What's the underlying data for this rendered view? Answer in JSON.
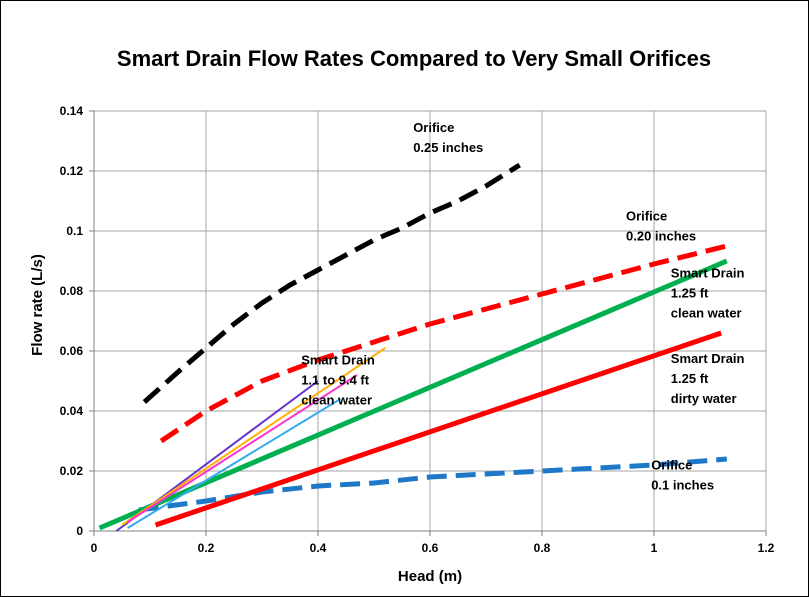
{
  "chart_data": {
    "type": "line",
    "title": "Smart Drain Flow Rates Compared to Very Small Orifices",
    "xlabel": "Head (m)",
    "ylabel": "Flow rate (L/s)",
    "xlim": [
      0,
      1.2
    ],
    "ylim": [
      0,
      0.14
    ],
    "grid": true,
    "x_ticks": [
      "0",
      "0.2",
      "0.4",
      "0.6",
      "0.8",
      "1",
      "1.2"
    ],
    "y_ticks": [
      "0",
      "0.02",
      "0.04",
      "0.06",
      "0.08",
      "0.1",
      "0.12",
      "0.14"
    ],
    "series": [
      {
        "color": "#000000",
        "dashed": true,
        "width": 5,
        "x": [
          0.09,
          0.15,
          0.2,
          0.25,
          0.3,
          0.35,
          0.4,
          0.45,
          0.5,
          0.55,
          0.6,
          0.65,
          0.7,
          0.76
        ],
        "y": [
          0.043,
          0.053,
          0.061,
          0.069,
          0.076,
          0.082,
          0.087,
          0.092,
          0.097,
          0.101,
          0.106,
          0.11,
          0.115,
          0.122
        ]
      },
      {
        "color": "#ff0000",
        "dashed": true,
        "width": 5,
        "x": [
          0.12,
          0.2,
          0.3,
          0.4,
          0.5,
          0.6,
          0.7,
          0.8,
          0.9,
          1.0,
          1.13
        ],
        "y": [
          0.03,
          0.04,
          0.05,
          0.057,
          0.063,
          0.069,
          0.074,
          0.079,
          0.084,
          0.089,
          0.095
        ]
      },
      {
        "color": "#1e78c8",
        "dashed": true,
        "width": 5,
        "x": [
          0.08,
          0.2,
          0.3,
          0.4,
          0.5,
          0.6,
          0.7,
          0.8,
          0.9,
          1.0,
          1.13
        ],
        "y": [
          0.007,
          0.01,
          0.013,
          0.015,
          0.016,
          0.018,
          0.019,
          0.02,
          0.021,
          0.022,
          0.024
        ]
      },
      {
        "color": "#00b050",
        "dashed": false,
        "width": 5,
        "x": [
          0.01,
          1.13
        ],
        "y": [
          0.001,
          0.09
        ]
      },
      {
        "color": "#ff0000",
        "dashed": false,
        "width": 5,
        "x": [
          0.11,
          1.12
        ],
        "y": [
          0.002,
          0.066
        ]
      },
      {
        "color": "#6633cc",
        "dashed": false,
        "width": 2,
        "x": [
          0.04,
          0.4
        ],
        "y": [
          0.0,
          0.05
        ]
      },
      {
        "color": "#ffb000",
        "dashed": false,
        "width": 2,
        "x": [
          0.05,
          0.52
        ],
        "y": [
          0.002,
          0.061
        ]
      },
      {
        "color": "#ff33cc",
        "dashed": false,
        "width": 2,
        "x": [
          0.06,
          0.47
        ],
        "y": [
          0.003,
          0.052
        ]
      },
      {
        "color": "#33aaee",
        "dashed": false,
        "width": 2,
        "x": [
          0.06,
          0.44
        ],
        "y": [
          0.001,
          0.044
        ]
      }
    ],
    "annotations": [
      {
        "lines": [
          "Orifice",
          "0.25 inches"
        ],
        "x": 0.57,
        "y": 0.133
      },
      {
        "lines": [
          "Orifice",
          "0.20 inches"
        ],
        "x": 0.95,
        "y": 0.1035
      },
      {
        "lines": [
          "Smart Drain",
          "1.25 ft",
          "clean water"
        ],
        "x": 1.03,
        "y": 0.0845
      },
      {
        "lines": [
          "Smart Drain",
          "1.25 ft",
          "dirty water"
        ],
        "x": 1.03,
        "y": 0.056
      },
      {
        "lines": [
          "Smart Drain",
          "1.1 to 9.4 ft",
          "clean water"
        ],
        "x": 0.37,
        "y": 0.0555
      },
      {
        "lines": [
          "Orifice",
          "0.1 inches"
        ],
        "x": 0.995,
        "y": 0.0205
      }
    ]
  }
}
